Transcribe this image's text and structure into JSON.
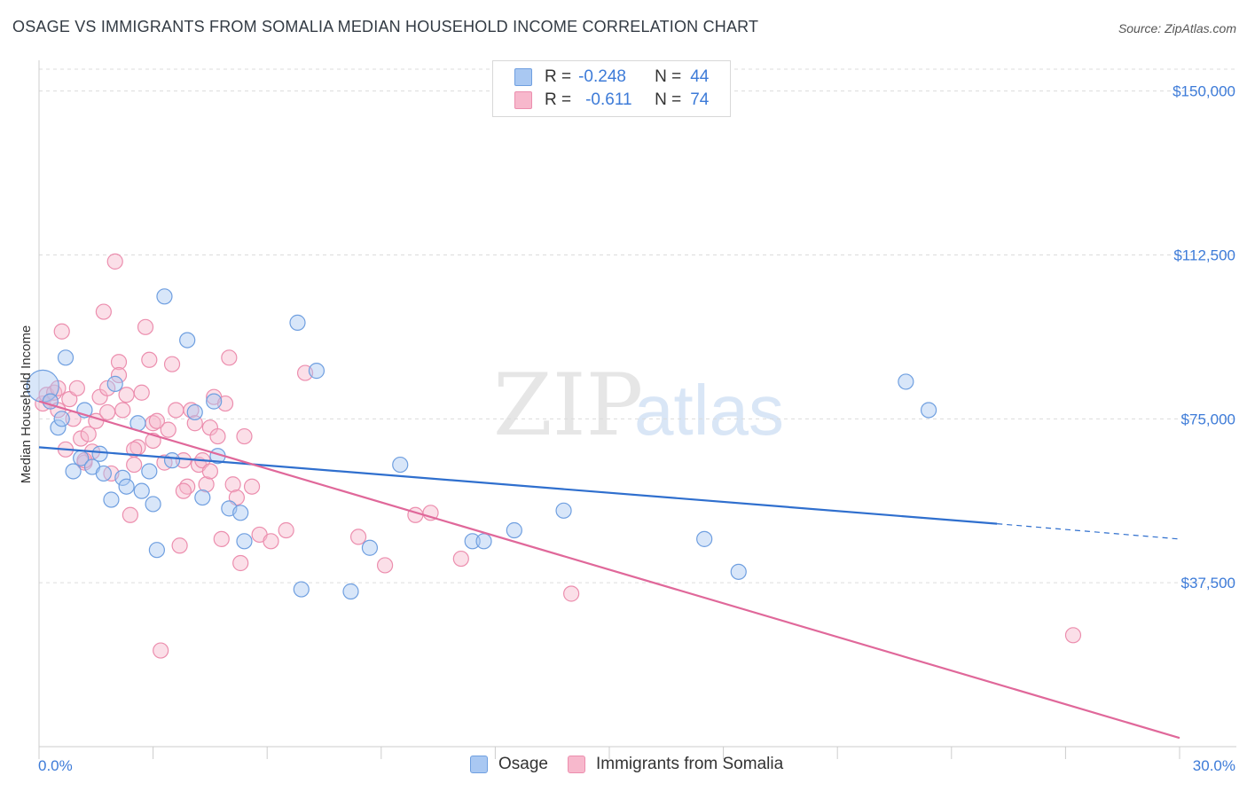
{
  "title": "OSAGE VS IMMIGRANTS FROM SOMALIA MEDIAN HOUSEHOLD INCOME CORRELATION CHART",
  "source": "Source: ZipAtlas.com",
  "watermark": {
    "zip": "ZIP",
    "atlas": "atlas"
  },
  "legend": {
    "osage": {
      "r_label": "R =",
      "r_value": "-0.248",
      "n_label": "N =",
      "n_value": "44"
    },
    "somalia": {
      "r_label": "R =",
      "r_value": "-0.611",
      "n_label": "N =",
      "n_value": "74"
    }
  },
  "colors": {
    "osage_fill": "#a9c8f2",
    "osage_stroke": "#6f9fe0",
    "osage_line": "#2f6fce",
    "somalia_fill": "#f7b8cc",
    "somalia_stroke": "#ec8eae",
    "somalia_line": "#e0689a",
    "tick_text": "#3d7bd8",
    "grid": "#dcdcdc"
  },
  "chart_data": {
    "type": "scatter",
    "title": "OSAGE VS IMMIGRANTS FROM SOMALIA MEDIAN HOUSEHOLD INCOME CORRELATION CHART",
    "xlabel": "",
    "ylabel": "Median Household Income",
    "xlim": [
      0,
      30
    ],
    "ylim": [
      0,
      155000
    ],
    "x_tick_labels": [
      "0.0%",
      "30.0%"
    ],
    "y_ticks": [
      37500,
      75000,
      112500,
      150000
    ],
    "y_tick_labels": [
      "$37,500",
      "$75,000",
      "$112,500",
      "$150,000"
    ],
    "grid": "horizontal dashed",
    "legend_position": "bottom",
    "series": [
      {
        "name": "Osage",
        "points": [
          [
            0.1,
            82500
          ],
          [
            0.3,
            79000
          ],
          [
            0.5,
            73000
          ],
          [
            0.6,
            75000
          ],
          [
            0.7,
            89000
          ],
          [
            0.9,
            63000
          ],
          [
            1.1,
            66000
          ],
          [
            1.2,
            77000
          ],
          [
            1.4,
            64000
          ],
          [
            1.6,
            67000
          ],
          [
            1.7,
            62500
          ],
          [
            1.9,
            56500
          ],
          [
            2.0,
            83000
          ],
          [
            2.2,
            61500
          ],
          [
            2.3,
            59500
          ],
          [
            2.6,
            74000
          ],
          [
            2.7,
            58500
          ],
          [
            2.9,
            63000
          ],
          [
            3.0,
            55500
          ],
          [
            3.1,
            45000
          ],
          [
            3.3,
            103000
          ],
          [
            3.5,
            65500
          ],
          [
            3.9,
            93000
          ],
          [
            4.1,
            76500
          ],
          [
            4.3,
            57000
          ],
          [
            4.6,
            79000
          ],
          [
            4.7,
            66500
          ],
          [
            5.0,
            54500
          ],
          [
            5.3,
            53500
          ],
          [
            5.4,
            47000
          ],
          [
            6.8,
            97000
          ],
          [
            6.9,
            36000
          ],
          [
            7.3,
            86000
          ],
          [
            8.2,
            35500
          ],
          [
            8.7,
            45500
          ],
          [
            9.5,
            64500
          ],
          [
            11.4,
            47000
          ],
          [
            11.7,
            47000
          ],
          [
            12.5,
            49500
          ],
          [
            13.8,
            54000
          ],
          [
            17.5,
            47500
          ],
          [
            18.4,
            40000
          ],
          [
            22.8,
            83500
          ],
          [
            23.4,
            77000
          ]
        ]
      },
      {
        "name": "Immigrants from Somalia",
        "points": [
          [
            0.1,
            78500
          ],
          [
            0.2,
            80500
          ],
          [
            0.3,
            79000
          ],
          [
            0.4,
            81000
          ],
          [
            0.5,
            77000
          ],
          [
            0.6,
            95000
          ],
          [
            0.7,
            68000
          ],
          [
            0.8,
            79500
          ],
          [
            0.9,
            75000
          ],
          [
            1.0,
            82000
          ],
          [
            1.1,
            70500
          ],
          [
            1.2,
            65000
          ],
          [
            1.3,
            71500
          ],
          [
            1.4,
            67500
          ],
          [
            1.5,
            74500
          ],
          [
            1.6,
            80000
          ],
          [
            1.7,
            99500
          ],
          [
            1.8,
            82000
          ],
          [
            1.9,
            62500
          ],
          [
            2.0,
            111000
          ],
          [
            2.1,
            88000
          ],
          [
            2.2,
            77000
          ],
          [
            2.3,
            80500
          ],
          [
            2.4,
            53000
          ],
          [
            2.5,
            64500
          ],
          [
            2.6,
            68500
          ],
          [
            2.7,
            81000
          ],
          [
            2.8,
            96000
          ],
          [
            2.9,
            88500
          ],
          [
            3.0,
            74000
          ],
          [
            3.1,
            74500
          ],
          [
            3.2,
            22000
          ],
          [
            3.3,
            65000
          ],
          [
            3.4,
            72500
          ],
          [
            3.5,
            87500
          ],
          [
            3.6,
            77000
          ],
          [
            3.7,
            46000
          ],
          [
            3.8,
            65500
          ],
          [
            3.9,
            59500
          ],
          [
            4.0,
            77000
          ],
          [
            4.1,
            74000
          ],
          [
            4.2,
            64500
          ],
          [
            4.3,
            65500
          ],
          [
            4.4,
            60000
          ],
          [
            4.5,
            73000
          ],
          [
            4.6,
            80000
          ],
          [
            4.7,
            71000
          ],
          [
            4.8,
            47500
          ],
          [
            4.9,
            78500
          ],
          [
            5.0,
            89000
          ],
          [
            5.1,
            60000
          ],
          [
            5.2,
            57000
          ],
          [
            5.3,
            42000
          ],
          [
            5.4,
            71000
          ],
          [
            5.6,
            59500
          ],
          [
            5.8,
            48500
          ],
          [
            6.1,
            47000
          ],
          [
            6.5,
            49500
          ],
          [
            7.0,
            85500
          ],
          [
            8.4,
            48000
          ],
          [
            9.1,
            41500
          ],
          [
            9.9,
            53000
          ],
          [
            10.3,
            53500
          ],
          [
            11.1,
            43000
          ],
          [
            14.0,
            35000
          ],
          [
            27.2,
            25500
          ],
          [
            0.5,
            82000
          ],
          [
            1.2,
            65500
          ],
          [
            1.8,
            76500
          ],
          [
            2.5,
            68000
          ],
          [
            3.0,
            70000
          ],
          [
            3.8,
            58500
          ],
          [
            4.5,
            63000
          ],
          [
            2.1,
            85000
          ]
        ]
      }
    ],
    "trend_lines": [
      {
        "series": "Osage",
        "x": [
          0,
          25.2
        ],
        "y": [
          68500,
          51000
        ],
        "dashed_to": [
          30,
          47500
        ]
      },
      {
        "series": "Immigrants from Somalia",
        "x": [
          0,
          30
        ],
        "y": [
          79000,
          2000
        ]
      }
    ]
  },
  "axis_ylabel": "Median Household Income",
  "x_left_label": "0.0%",
  "x_right_label": "30.0%",
  "bottom_legend": {
    "osage": "Osage",
    "somalia": "Immigrants from Somalia"
  }
}
